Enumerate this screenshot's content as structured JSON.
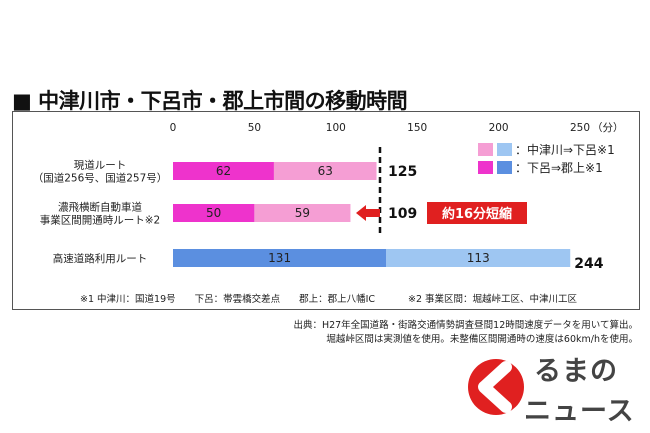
{
  "title": "■ 中津川市・下呂市・郡上市間の移動時間",
  "chart_data": {
    "type": "bar",
    "orientation": "horizontal",
    "stacked": true,
    "xlim": [
      0,
      250
    ],
    "x_ticks": [
      "0",
      "50",
      "100",
      "150",
      "200",
      "250"
    ],
    "x_unit": "（分）",
    "categories": [
      "現道ルート\n（国道256号、国道257号）",
      "濃飛横断自動車道\n事業区間開通時ルート※2",
      "高速道路利用ルート"
    ],
    "series": [
      {
        "name": "：中津川⇒下呂※1",
        "values": [
          63,
          59,
          113
        ]
      },
      {
        "name": "：下呂⇒郡上※1",
        "values": [
          62,
          50,
          131
        ]
      }
    ],
    "segment_order": [
      [
        1,
        0
      ],
      [
        1,
        0
      ],
      [
        1,
        0
      ]
    ],
    "segment_labels": [
      [
        "62",
        "63"
      ],
      [
        "50",
        "59"
      ],
      [
        "131",
        "113"
      ]
    ],
    "totals": [
      "125",
      "109",
      "244"
    ],
    "annotation": "約16分短縮",
    "colors": {
      "row_dark": "#ee33cc",
      "row_light": "#f59ed4",
      "highway_dark": "#5b8fe0",
      "highway_light": "#9ec6f2",
      "arrow": "#e02020"
    }
  },
  "footnotes": {
    "left": "※1 中津川：国道19号　　下呂：帯雲橋交差点　　郡上：郡上八幡IC",
    "right": "※2 事業区間：堀越峠工区、中津川工区"
  },
  "source_lines": [
    "出典：H27年全国道路・街路交通情勢調査昼間12時間速度データを用いて算出。",
    "堀越峠区間は実測値を使用。未整備区間開通時の速度は60km/hを使用。"
  ],
  "logo": {
    "line1": "るまの",
    "line2": "ニュース"
  }
}
